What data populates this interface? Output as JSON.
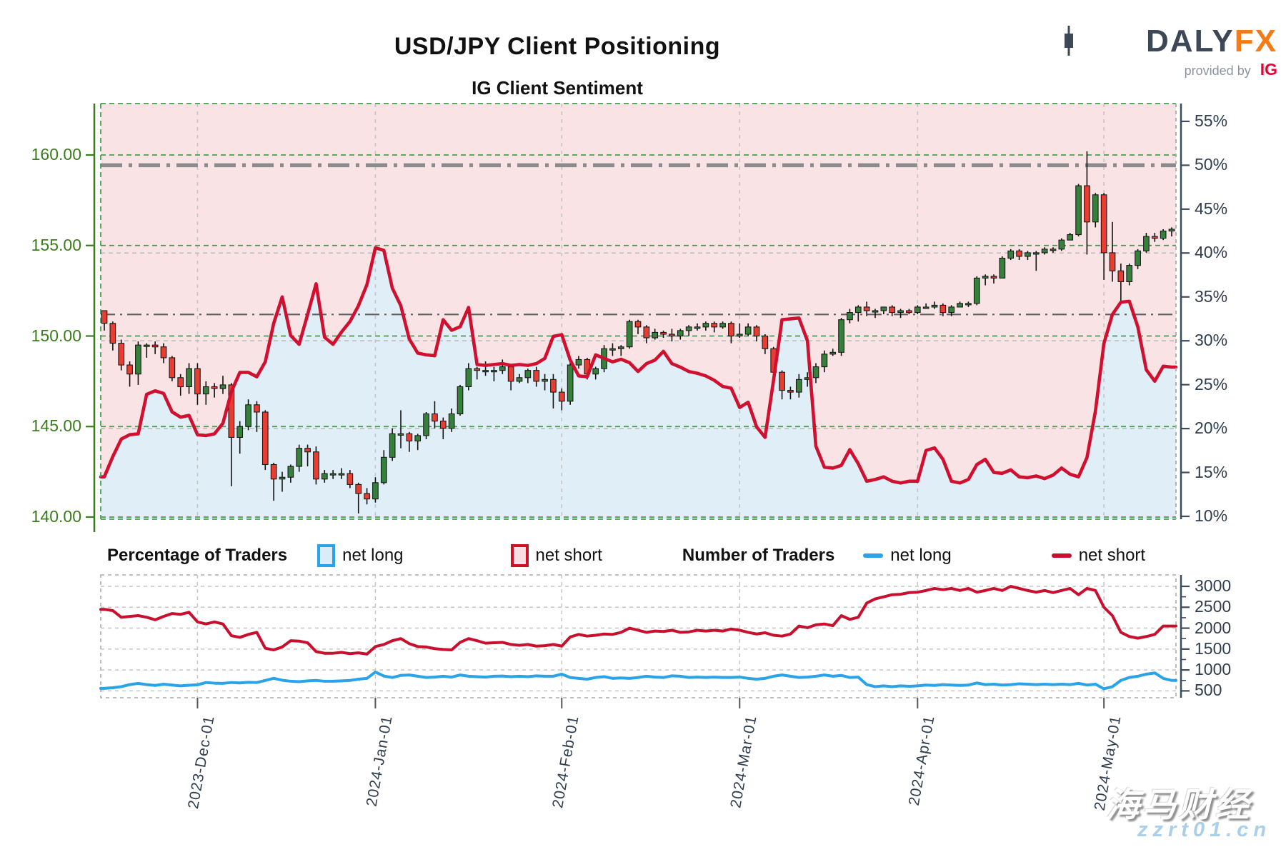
{
  "header": {
    "title": "USD/JPY Client Positioning",
    "subtitle": "IG Client Sentiment"
  },
  "logo": {
    "part1": "DA",
    "part2": "LY",
    "part3": "FX",
    "tagline": "provided by",
    "ig": "IG"
  },
  "legend": {
    "percentage_heading": "Percentage of Traders",
    "number_heading": "Number of Traders",
    "net_long": "net long",
    "net_short": "net short"
  },
  "watermark": {
    "line1": "海马财经",
    "line2": "zzrt01.cn"
  },
  "colors": {
    "short_area_pink": "#f9e3e5",
    "long_area_blue": "#e0eef8",
    "sentiment_line_red": "#d11030",
    "candle_green": "#35803a",
    "candle_red": "#ea3d32",
    "count_long_blue": "#2aa3e8",
    "count_short_red": "#c90f2e",
    "axis_green": "#3a7d1c",
    "axis_dark": "#3d4c5c",
    "grid_green": "#44a048",
    "grid_gray": "#bdbdbd",
    "refline_gray": "#8c8c8c",
    "brand_dark": "#3c4856",
    "brand_orange": "#f57b17",
    "ig_red": "#e40430"
  },
  "chart_data": [
    {
      "type": "candlestick",
      "title": "IG Client Sentiment",
      "left_axis_ticks": [
        "160.00",
        "155.00",
        "150.00",
        "145.00",
        "140.00"
      ],
      "price_gridlines": [
        160,
        155,
        150,
        145,
        140
      ],
      "right_axis_ticks": [
        "55%",
        "50%",
        "45%",
        "40%",
        "35%",
        "30%",
        "25%",
        "20%",
        "15%",
        "10%"
      ],
      "pct_axis_values": [
        55,
        50,
        45,
        40,
        35,
        30,
        25,
        20,
        15,
        10
      ],
      "pct_gridlines": [
        40,
        30,
        20
      ],
      "reference_lines": {
        "thick_dashdot_pct": 50,
        "thin_dashdot_pct": 33
      },
      "x_tick_labels": [
        "2023-Dec-01",
        "2024-Jan-01",
        "2024-Feb-01",
        "2024-Mar-01",
        "2024-Apr-01",
        "2024-May-01"
      ],
      "x_tick_day_index": [
        11,
        32,
        54,
        75,
        96,
        118
      ],
      "candles_ohlc": [
        [
          151.4,
          151.4,
          150.3,
          150.7
        ],
        [
          150.7,
          150.8,
          149.2,
          149.6
        ],
        [
          149.6,
          149.8,
          148.1,
          148.4
        ],
        [
          148.4,
          148.6,
          147.2,
          147.9
        ],
        [
          147.9,
          149.7,
          147.3,
          149.5
        ],
        [
          149.5,
          149.6,
          148.8,
          149.5
        ],
        [
          149.5,
          149.7,
          149.0,
          149.4
        ],
        [
          149.4,
          149.6,
          148.5,
          148.8
        ],
        [
          148.8,
          148.9,
          147.5,
          147.7
        ],
        [
          147.7,
          147.9,
          146.7,
          147.2
        ],
        [
          147.2,
          148.5,
          146.8,
          148.2
        ],
        [
          148.2,
          148.5,
          146.2,
          146.8
        ],
        [
          146.8,
          147.5,
          146.2,
          147.2
        ],
        [
          147.2,
          147.4,
          146.6,
          147.1
        ],
        [
          147.1,
          147.8,
          146.8,
          147.3
        ],
        [
          147.3,
          147.4,
          141.7,
          144.4
        ],
        [
          144.4,
          145.3,
          143.5,
          145.0
        ],
        [
          145.0,
          146.5,
          144.8,
          146.2
        ],
        [
          146.2,
          146.4,
          144.7,
          145.8
        ],
        [
          145.8,
          145.9,
          142.6,
          142.9
        ],
        [
          142.9,
          143.0,
          140.9,
          142.1
        ],
        [
          142.1,
          142.5,
          141.4,
          142.2
        ],
        [
          142.2,
          142.9,
          141.9,
          142.8
        ],
        [
          142.8,
          144.0,
          142.5,
          143.8
        ],
        [
          143.8,
          144.0,
          142.8,
          143.6
        ],
        [
          143.6,
          143.9,
          141.8,
          142.1
        ],
        [
          142.1,
          142.6,
          141.9,
          142.4
        ],
        [
          142.4,
          142.6,
          142.1,
          142.4
        ],
        [
          142.4,
          142.7,
          142.1,
          142.4
        ],
        [
          142.4,
          142.6,
          141.6,
          141.8
        ],
        [
          141.8,
          141.9,
          140.2,
          141.3
        ],
        [
          141.3,
          141.6,
          140.7,
          141.0
        ],
        [
          141.0,
          142.2,
          140.8,
          141.9
        ],
        [
          141.9,
          143.7,
          141.8,
          143.3
        ],
        [
          143.3,
          144.9,
          143.1,
          144.6
        ],
        [
          144.6,
          145.9,
          143.8,
          144.6
        ],
        [
          144.6,
          144.7,
          143.6,
          144.2
        ],
        [
          144.2,
          144.6,
          143.7,
          144.5
        ],
        [
          144.5,
          145.8,
          144.3,
          145.7
        ],
        [
          145.7,
          146.4,
          144.9,
          145.3
        ],
        [
          145.3,
          145.5,
          144.3,
          144.9
        ],
        [
          144.9,
          146.0,
          144.7,
          145.7
        ],
        [
          145.7,
          147.3,
          145.6,
          147.2
        ],
        [
          147.2,
          148.5,
          147.0,
          148.2
        ],
        [
          148.2,
          148.3,
          147.6,
          148.1
        ],
        [
          148.1,
          148.6,
          147.8,
          148.1
        ],
        [
          148.1,
          148.3,
          147.5,
          148.1
        ],
        [
          148.1,
          148.7,
          147.9,
          148.3
        ],
        [
          148.3,
          148.4,
          147.0,
          147.5
        ],
        [
          147.5,
          147.9,
          147.4,
          147.7
        ],
        [
          147.7,
          148.2,
          147.4,
          148.1
        ],
        [
          148.1,
          148.3,
          147.2,
          147.5
        ],
        [
          147.5,
          147.9,
          147.0,
          147.6
        ],
        [
          147.6,
          147.9,
          146.0,
          146.9
        ],
        [
          146.9,
          147.1,
          145.9,
          146.4
        ],
        [
          146.4,
          148.6,
          146.2,
          148.4
        ],
        [
          148.4,
          148.9,
          148.2,
          148.7
        ],
        [
          148.7,
          148.8,
          147.6,
          147.9
        ],
        [
          147.9,
          148.3,
          147.6,
          148.2
        ],
        [
          148.2,
          149.5,
          148.0,
          149.3
        ],
        [
          149.3,
          149.6,
          148.9,
          149.3
        ],
        [
          149.3,
          149.5,
          148.9,
          149.4
        ],
        [
          149.4,
          150.9,
          149.3,
          150.8
        ],
        [
          150.8,
          150.9,
          150.1,
          150.5
        ],
        [
          150.5,
          150.6,
          149.6,
          149.9
        ],
        [
          149.9,
          150.4,
          149.8,
          150.2
        ],
        [
          150.2,
          150.3,
          149.9,
          150.1
        ],
        [
          150.1,
          150.4,
          149.7,
          150.0
        ],
        [
          150.0,
          150.4,
          149.8,
          150.3
        ],
        [
          150.3,
          150.6,
          150.0,
          150.5
        ],
        [
          150.5,
          150.7,
          150.3,
          150.5
        ],
        [
          150.5,
          150.8,
          150.3,
          150.7
        ],
        [
          150.7,
          150.8,
          150.2,
          150.5
        ],
        [
          150.5,
          150.8,
          150.4,
          150.7
        ],
        [
          150.7,
          150.8,
          149.6,
          150.0
        ],
        [
          150.0,
          150.7,
          149.9,
          150.1
        ],
        [
          150.1,
          150.7,
          150.0,
          150.5
        ],
        [
          150.5,
          150.6,
          149.7,
          150.0
        ],
        [
          150.0,
          150.1,
          149.0,
          149.3
        ],
        [
          149.3,
          149.4,
          147.5,
          148.0
        ],
        [
          148.0,
          148.1,
          146.5,
          147.0
        ],
        [
          147.0,
          147.2,
          146.5,
          146.9
        ],
        [
          146.9,
          147.9,
          146.6,
          147.6
        ],
        [
          147.6,
          148.0,
          147.2,
          147.7
        ],
        [
          147.7,
          148.5,
          147.4,
          148.3
        ],
        [
          148.3,
          149.2,
          148.0,
          149.0
        ],
        [
          149.0,
          149.3,
          148.9,
          149.1
        ],
        [
          149.1,
          151.0,
          148.9,
          150.9
        ],
        [
          150.9,
          151.5,
          150.7,
          151.3
        ],
        [
          151.3,
          151.7,
          150.8,
          151.6
        ],
        [
          151.6,
          151.9,
          151.1,
          151.4
        ],
        [
          151.4,
          151.5,
          151.0,
          151.4
        ],
        [
          151.4,
          151.6,
          151.2,
          151.6
        ],
        [
          151.6,
          151.7,
          151.1,
          151.3
        ],
        [
          151.3,
          151.5,
          151.0,
          151.4
        ],
        [
          151.4,
          151.5,
          151.2,
          151.3
        ],
        [
          151.3,
          151.7,
          151.2,
          151.6
        ],
        [
          151.6,
          151.8,
          151.5,
          151.6
        ],
        [
          151.6,
          151.9,
          151.5,
          151.7
        ],
        [
          151.7,
          151.8,
          151.1,
          151.3
        ],
        [
          151.3,
          151.7,
          151.1,
          151.6
        ],
        [
          151.6,
          151.9,
          151.6,
          151.8
        ],
        [
          151.8,
          151.9,
          151.6,
          151.8
        ],
        [
          151.8,
          153.3,
          151.7,
          153.2
        ],
        [
          153.2,
          153.4,
          152.8,
          153.3
        ],
        [
          153.3,
          153.4,
          152.9,
          153.2
        ],
        [
          153.2,
          154.4,
          153.2,
          154.3
        ],
        [
          154.3,
          154.8,
          154.2,
          154.7
        ],
        [
          154.7,
          154.8,
          154.2,
          154.4
        ],
        [
          154.4,
          154.7,
          154.2,
          154.6
        ],
        [
          154.6,
          154.7,
          153.6,
          154.6
        ],
        [
          154.6,
          154.9,
          154.5,
          154.8
        ],
        [
          154.8,
          154.9,
          154.6,
          154.8
        ],
        [
          154.8,
          155.4,
          154.7,
          155.3
        ],
        [
          155.3,
          155.7,
          155.3,
          155.6
        ],
        [
          155.6,
          158.4,
          155.5,
          158.3
        ],
        [
          158.3,
          160.2,
          154.5,
          156.3
        ],
        [
          156.3,
          157.9,
          156.0,
          157.8
        ],
        [
          157.8,
          157.9,
          153.1,
          154.6
        ],
        [
          154.6,
          156.3,
          153.0,
          153.6
        ],
        [
          153.6,
          154.0,
          151.9,
          153.0
        ],
        [
          153.0,
          154.0,
          152.8,
          153.9
        ],
        [
          153.9,
          154.8,
          153.7,
          154.7
        ],
        [
          154.7,
          155.7,
          154.6,
          155.5
        ],
        [
          155.5,
          155.7,
          155.2,
          155.4
        ],
        [
          155.4,
          155.9,
          155.3,
          155.8
        ],
        [
          155.8,
          156.0,
          155.5,
          155.9
        ]
      ],
      "net_short_pct": [
        14.5,
        16.8,
        18.8,
        19.3,
        19.4,
        23.9,
        24.3,
        24.0,
        21.9,
        21.3,
        21.5,
        19.3,
        19.2,
        19.4,
        20.6,
        24.2,
        26.4,
        26.4,
        25.9,
        27.6,
        32.0,
        35.0,
        30.6,
        29.6,
        33.0,
        36.5,
        30.4,
        29.6,
        31.0,
        32.2,
        34.0,
        36.4,
        40.6,
        40.3,
        36.0,
        34.0,
        30.2,
        28.6,
        28.4,
        28.3,
        32.4,
        31.2,
        31.6,
        33.8,
        27.3,
        27.2,
        27.3,
        27.4,
        27.2,
        27.3,
        27.2,
        27.4,
        28.0,
        30.5,
        30.7,
        27.8,
        26.0,
        25.9,
        28.4,
        28.0,
        27.6,
        27.9,
        27.5,
        26.5,
        27.4,
        27.8,
        28.8,
        27.4,
        27.0,
        26.5,
        26.3,
        26.0,
        25.5,
        24.8,
        24.6,
        22.4,
        23.0,
        20.2,
        19.0,
        25.5,
        32.4,
        32.5,
        32.6,
        30.0,
        18.0,
        15.6,
        15.5,
        15.8,
        17.6,
        16.0,
        14.0,
        14.2,
        14.5,
        14.0,
        13.8,
        14.0,
        14.0,
        17.5,
        17.8,
        16.5,
        14.0,
        13.8,
        14.2,
        15.9,
        16.5,
        15.0,
        14.9,
        15.3,
        14.5,
        14.4,
        14.6,
        14.3,
        14.7,
        15.5,
        14.8,
        14.5,
        16.7,
        22.0,
        29.7,
        33.0,
        34.4,
        34.5,
        31.6,
        26.7,
        25.4,
        27.1,
        27.0
      ]
    },
    {
      "type": "line",
      "right_axis_ticks": [
        "3000",
        "2500",
        "2000",
        "1500",
        "1000",
        "500"
      ],
      "count_axis_values": [
        3000,
        2500,
        2000,
        1500,
        1000,
        500
      ],
      "series": [
        {
          "name": "net short",
          "values": [
            2450,
            2420,
            2260,
            2280,
            2300,
            2260,
            2200,
            2280,
            2350,
            2330,
            2380,
            2150,
            2100,
            2150,
            2100,
            1820,
            1780,
            1850,
            1900,
            1520,
            1480,
            1550,
            1700,
            1690,
            1650,
            1440,
            1400,
            1400,
            1420,
            1390,
            1410,
            1380,
            1560,
            1610,
            1700,
            1750,
            1630,
            1560,
            1550,
            1510,
            1490,
            1480,
            1660,
            1750,
            1700,
            1640,
            1650,
            1660,
            1610,
            1590,
            1610,
            1570,
            1580,
            1610,
            1570,
            1790,
            1850,
            1810,
            1830,
            1860,
            1850,
            1900,
            2000,
            1950,
            1900,
            1930,
            1920,
            1950,
            1900,
            1910,
            1950,
            1930,
            1950,
            1930,
            1980,
            1950,
            1900,
            1860,
            1890,
            1830,
            1810,
            1860,
            2050,
            2010,
            2080,
            2100,
            2060,
            2300,
            2210,
            2260,
            2600,
            2700,
            2750,
            2800,
            2810,
            2850,
            2860,
            2900,
            2950,
            2920,
            2950,
            2900,
            2950,
            2860,
            2900,
            2950,
            2900,
            3000,
            2950,
            2900,
            2860,
            2900,
            2850,
            2900,
            2950,
            2800,
            2950,
            2900,
            2500,
            2300,
            1900,
            1800,
            1760,
            1800,
            1850,
            2050,
            2050
          ]
        },
        {
          "name": "net long",
          "values": [
            560,
            575,
            600,
            650,
            680,
            650,
            630,
            660,
            640,
            620,
            635,
            645,
            700,
            685,
            680,
            700,
            690,
            705,
            700,
            750,
            800,
            755,
            730,
            720,
            740,
            750,
            730,
            730,
            740,
            750,
            780,
            800,
            950,
            855,
            820,
            870,
            880,
            850,
            820,
            830,
            850,
            830,
            880,
            850,
            840,
            830,
            850,
            855,
            840,
            850,
            840,
            860,
            850,
            850,
            900,
            820,
            800,
            780,
            820,
            840,
            800,
            810,
            800,
            820,
            850,
            830,
            820,
            860,
            850,
            820,
            830,
            820,
            830,
            820,
            820,
            830,
            800,
            780,
            800,
            850,
            880,
            850,
            820,
            830,
            850,
            880,
            850,
            870,
            820,
            830,
            650,
            600,
            620,
            600,
            620,
            610,
            620,
            640,
            630,
            650,
            640,
            630,
            640,
            690,
            650,
            660,
            640,
            650,
            670,
            660,
            650,
            660,
            650,
            660,
            650,
            680,
            640,
            660,
            550,
            600,
            750,
            820,
            850,
            900,
            930,
            800,
            750
          ]
        }
      ]
    }
  ]
}
